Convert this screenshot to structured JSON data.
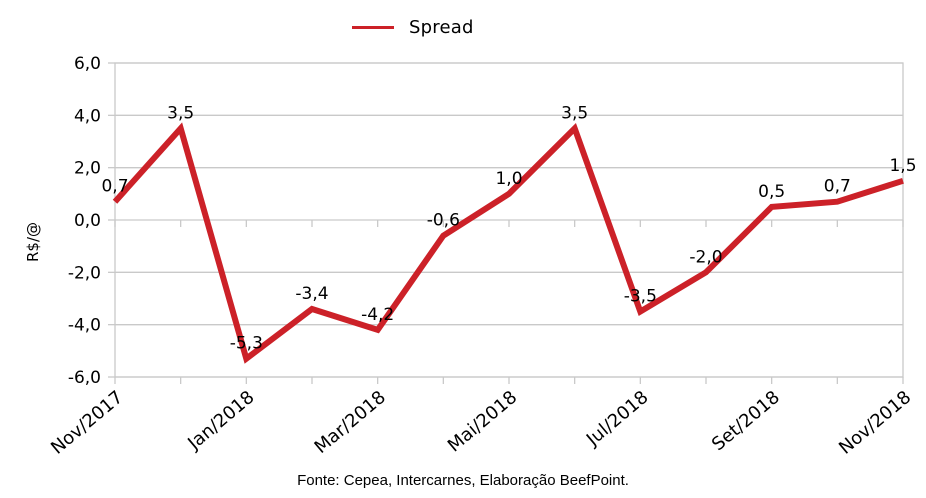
{
  "chart_data": {
    "type": "line",
    "legend": "Spread",
    "legend_position": "top",
    "ylabel": "R$/@",
    "ylim": [
      -6,
      6
    ],
    "grid": "horizontal",
    "y_ticks": [
      {
        "value": 6,
        "label": "6,0"
      },
      {
        "value": 4,
        "label": "4,0"
      },
      {
        "value": 2,
        "label": "2,0"
      },
      {
        "value": 0,
        "label": "0,0"
      },
      {
        "value": -2,
        "label": "-2,0"
      },
      {
        "value": -4,
        "label": "-4,0"
      },
      {
        "value": -6,
        "label": "-6,0"
      }
    ],
    "x_tick_labels": [
      {
        "index": 0,
        "label": "Nov/2017"
      },
      {
        "index": 2,
        "label": "Jan/2018"
      },
      {
        "index": 4,
        "label": "Mar/2018"
      },
      {
        "index": 6,
        "label": "Mai/2018"
      },
      {
        "index": 8,
        "label": "Jul/2018"
      },
      {
        "index": 10,
        "label": "Set/2018"
      },
      {
        "index": 12,
        "label": "Nov/2018"
      }
    ],
    "series": [
      {
        "name": "Spread",
        "color": "#cc2128",
        "values": [
          0.7,
          3.5,
          -5.3,
          -3.4,
          -4.2,
          -0.6,
          1.0,
          3.5,
          -3.5,
          -2.0,
          0.5,
          0.7,
          1.5
        ],
        "point_labels": [
          "0,7",
          "3,5",
          "-5,3",
          "-3,4",
          "-4,2",
          "-0,6",
          "1,0",
          "3,5",
          "-3,5",
          "-2,0",
          "0,5",
          "0,7",
          "1,5"
        ]
      }
    ],
    "source": "Fonte: Cepea, Intercarnes, Elaboração BeefPoint.",
    "colors": {
      "grid": "#c9c9c9",
      "text": "#000000",
      "background": "#ffffff"
    }
  }
}
